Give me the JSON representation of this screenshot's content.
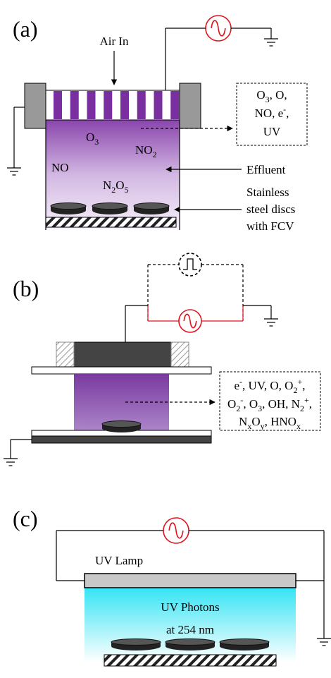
{
  "panel_a": {
    "label": "(a)",
    "air_in": "Air In",
    "box_lines": [
      [
        "O",
        {
          "sub": "3"
        },
        ", O,"
      ],
      [
        "NO, e",
        {
          "sup": "-"
        },
        ","
      ],
      [
        "UV"
      ]
    ],
    "species": [
      [
        "O",
        {
          "sub": "3"
        }
      ],
      [
        "NO",
        {
          "sub": "2"
        }
      ],
      [
        "NO"
      ],
      [
        "N",
        {
          "sub": "2"
        },
        "O",
        {
          "sub": "5"
        }
      ]
    ],
    "effluent": "Effluent",
    "discs": [
      "Stainless",
      "steel discs",
      "with FCV"
    ]
  },
  "panel_b": {
    "label": "(b)",
    "box_lines": [
      [
        "e",
        {
          "sup": "-"
        },
        ", UV, O, O",
        {
          "sub": "2"
        },
        {
          "sup": "+"
        },
        ","
      ],
      [
        "O",
        {
          "sub": "2"
        },
        {
          "sup": "-"
        },
        ", O",
        {
          "sub": "3"
        },
        ", OH, N",
        {
          "sub": "2"
        },
        {
          "sup": "+"
        },
        ","
      ],
      [
        "N",
        {
          "sub": "x"
        },
        "O",
        {
          "sub": "y"
        },
        ", HNO",
        {
          "sub": "x"
        }
      ]
    ]
  },
  "panel_c": {
    "label": "(c)",
    "lamp": "UV Lamp",
    "photons": [
      "UV Photons",
      "at 254 nm"
    ]
  }
}
